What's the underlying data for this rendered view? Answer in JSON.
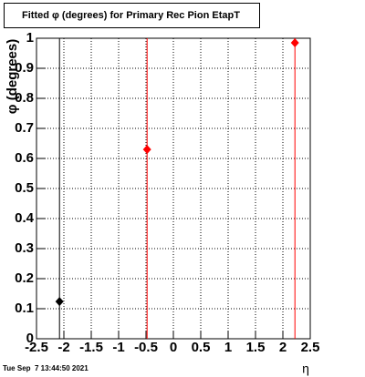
{
  "chart_data": {
    "type": "scatter",
    "title": "Fitted φ (degrees) for Primary Rec Pion EtapT",
    "ylabel": "φ (degrees)",
    "xlabel": "η",
    "footer": "Tue Sep  7 13:44:50 2021",
    "series": [
      {
        "color": "#000000",
        "x": [
          -2.08
        ],
        "values": [
          0.124
        ]
      },
      {
        "color": "#ff0000",
        "x": [
          -0.48,
          2.22
        ],
        "values": [
          0.63,
          0.985
        ]
      }
    ],
    "xlim": [
      -2.5,
      2.5
    ],
    "xticks": [
      -2.5,
      -2,
      -1.5,
      -1,
      -0.5,
      0,
      0.5,
      1,
      1.5,
      2,
      2.5
    ],
    "ylim": [
      0,
      1
    ],
    "yticks": [
      0,
      0.1,
      0.2,
      0.3,
      0.4,
      0.5,
      0.6,
      0.7,
      0.8,
      0.9,
      1
    ],
    "grid": true
  }
}
